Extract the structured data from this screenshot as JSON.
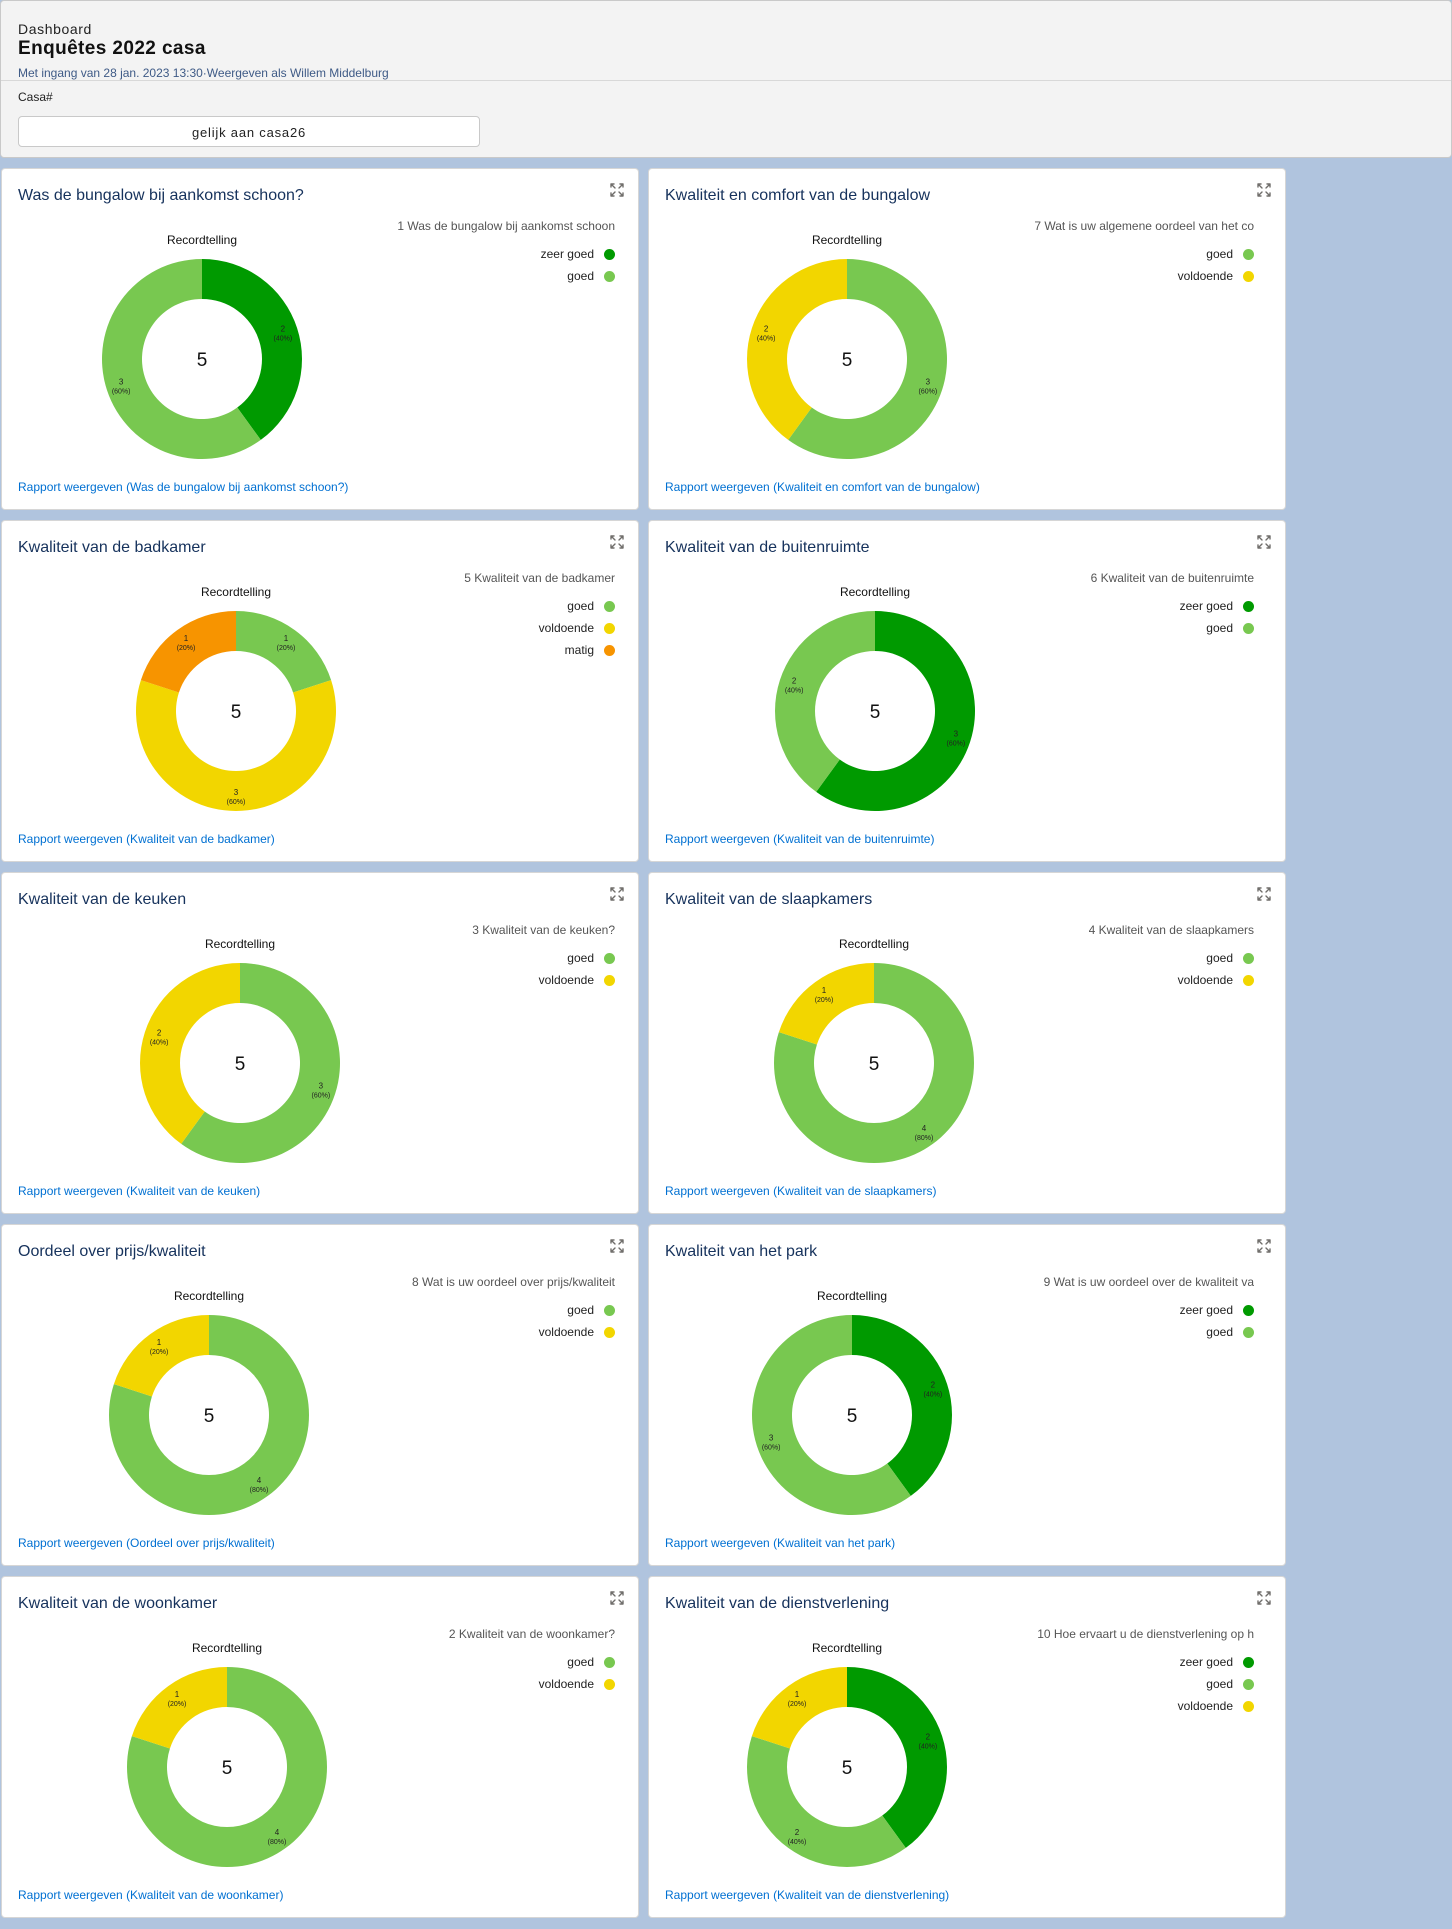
{
  "header": {
    "label": "Dashboard",
    "title": "Enquêtes 2022 casa",
    "subtitle": "Met ingang van 28 jan. 2023 13:30·Weergeven als Willem Middelburg",
    "filter_label": "Casa#",
    "filter_value": "gelijk aan casa26"
  },
  "colors": {
    "zeer goed": "#009a00",
    "goed": "#78c850",
    "voldoende": "#f2d600",
    "matig": "#f79400"
  },
  "chart_data": [
    {
      "type": "donut",
      "title": "Was de bungalow bij aankomst schoon?",
      "chart_title": "Recordtelling",
      "legend_title": "1 Was de bungalow bij aankomst schoon",
      "total": "5",
      "segments": [
        {
          "name": "zeer goed",
          "value": 2,
          "label": "2",
          "pct": "(40%)"
        },
        {
          "name": "goed",
          "value": 3,
          "label": "3",
          "pct": "(60%)"
        }
      ],
      "link": "Rapport weergeven (Was de bungalow bij aankomst schoon?)"
    },
    {
      "type": "donut",
      "title": "Kwaliteit en comfort van de bungalow",
      "chart_title": "Recordtelling",
      "legend_title": "7 Wat is uw  algemene oordeel van het co",
      "total": "5",
      "segments": [
        {
          "name": "goed",
          "value": 3,
          "label": "3",
          "pct": "(60%)"
        },
        {
          "name": "voldoende",
          "value": 2,
          "label": "2",
          "pct": "(40%)"
        }
      ],
      "link": "Rapport weergeven (Kwaliteit en comfort van de bungalow)"
    },
    {
      "type": "donut",
      "title": "Kwaliteit van de badkamer",
      "chart_title": "Recordtelling",
      "legend_title": "5 Kwaliteit van de badkamer",
      "total": "5",
      "segments": [
        {
          "name": "goed",
          "value": 1,
          "label": "1",
          "pct": "(20%)"
        },
        {
          "name": "voldoende",
          "value": 3,
          "label": "3",
          "pct": "(60%)"
        },
        {
          "name": "matig",
          "value": 1,
          "label": "1",
          "pct": "(20%)"
        }
      ],
      "link": "Rapport weergeven (Kwaliteit van de badkamer)"
    },
    {
      "type": "donut",
      "title": "Kwaliteit van de buitenruimte",
      "chart_title": "Recordtelling",
      "legend_title": "6 Kwaliteit van de buitenruimte",
      "total": "5",
      "segments": [
        {
          "name": "zeer goed",
          "value": 3,
          "label": "3",
          "pct": "(60%)"
        },
        {
          "name": "goed",
          "value": 2,
          "label": "2",
          "pct": "(40%)"
        }
      ],
      "link": "Rapport weergeven (Kwaliteit van de buitenruimte)"
    },
    {
      "type": "donut",
      "title": "Kwaliteit van de keuken",
      "chart_title": "Recordtelling",
      "legend_title": "3 Kwaliteit van de keuken?",
      "total": "5",
      "segments": [
        {
          "name": "goed",
          "value": 3,
          "label": "3",
          "pct": "(60%)"
        },
        {
          "name": "voldoende",
          "value": 2,
          "label": "2",
          "pct": "(40%)"
        }
      ],
      "link": "Rapport weergeven (Kwaliteit van de keuken)"
    },
    {
      "type": "donut",
      "title": "Kwaliteit van de slaapkamers",
      "chart_title": "Recordtelling",
      "legend_title": "4 Kwaliteit van de slaapkamers",
      "total": "5",
      "segments": [
        {
          "name": "goed",
          "value": 4,
          "label": "4",
          "pct": "(80%)"
        },
        {
          "name": "voldoende",
          "value": 1,
          "label": "1",
          "pct": "(20%)"
        }
      ],
      "link": "Rapport weergeven (Kwaliteit van de slaapkamers)"
    },
    {
      "type": "donut",
      "title": "Oordeel over prijs/kwaliteit",
      "chart_title": "Recordtelling",
      "legend_title": "8 Wat is uw oordeel over prijs/kwaliteit",
      "total": "5",
      "segments": [
        {
          "name": "goed",
          "value": 4,
          "label": "4",
          "pct": "(80%)"
        },
        {
          "name": "voldoende",
          "value": 1,
          "label": "1",
          "pct": "(20%)"
        }
      ],
      "link": "Rapport weergeven (Oordeel over prijs/kwaliteit)"
    },
    {
      "type": "donut",
      "title": "Kwaliteit van het park",
      "chart_title": "Recordtelling",
      "legend_title": "9 Wat is uw oordeel over de kwaliteit va",
      "total": "5",
      "segments": [
        {
          "name": "zeer goed",
          "value": 2,
          "label": "2",
          "pct": "(40%)"
        },
        {
          "name": "goed",
          "value": 3,
          "label": "3",
          "pct": "(60%)"
        }
      ],
      "link": "Rapport weergeven (Kwaliteit van het park)"
    },
    {
      "type": "donut",
      "title": "Kwaliteit van de woonkamer",
      "chart_title": "Recordtelling",
      "legend_title": "2 Kwaliteit van de woonkamer?",
      "total": "5",
      "segments": [
        {
          "name": "goed",
          "value": 4,
          "label": "4",
          "pct": "(80%)"
        },
        {
          "name": "voldoende",
          "value": 1,
          "label": "1",
          "pct": "(20%)"
        }
      ],
      "link": "Rapport weergeven (Kwaliteit van de woonkamer)"
    },
    {
      "type": "donut",
      "title": "Kwaliteit van de dienstverlening",
      "chart_title": "Recordtelling",
      "legend_title": "10 Hoe ervaart u de dienstverlening op h",
      "total": "5",
      "segments": [
        {
          "name": "zeer goed",
          "value": 2,
          "label": "2",
          "pct": "(40%)"
        },
        {
          "name": "goed",
          "value": 2,
          "label": "2",
          "pct": "(40%)"
        },
        {
          "name": "voldoende",
          "value": 1,
          "label": "1",
          "pct": "(20%)"
        }
      ],
      "link": "Rapport weergeven (Kwaliteit van de dienstverlening)"
    }
  ]
}
